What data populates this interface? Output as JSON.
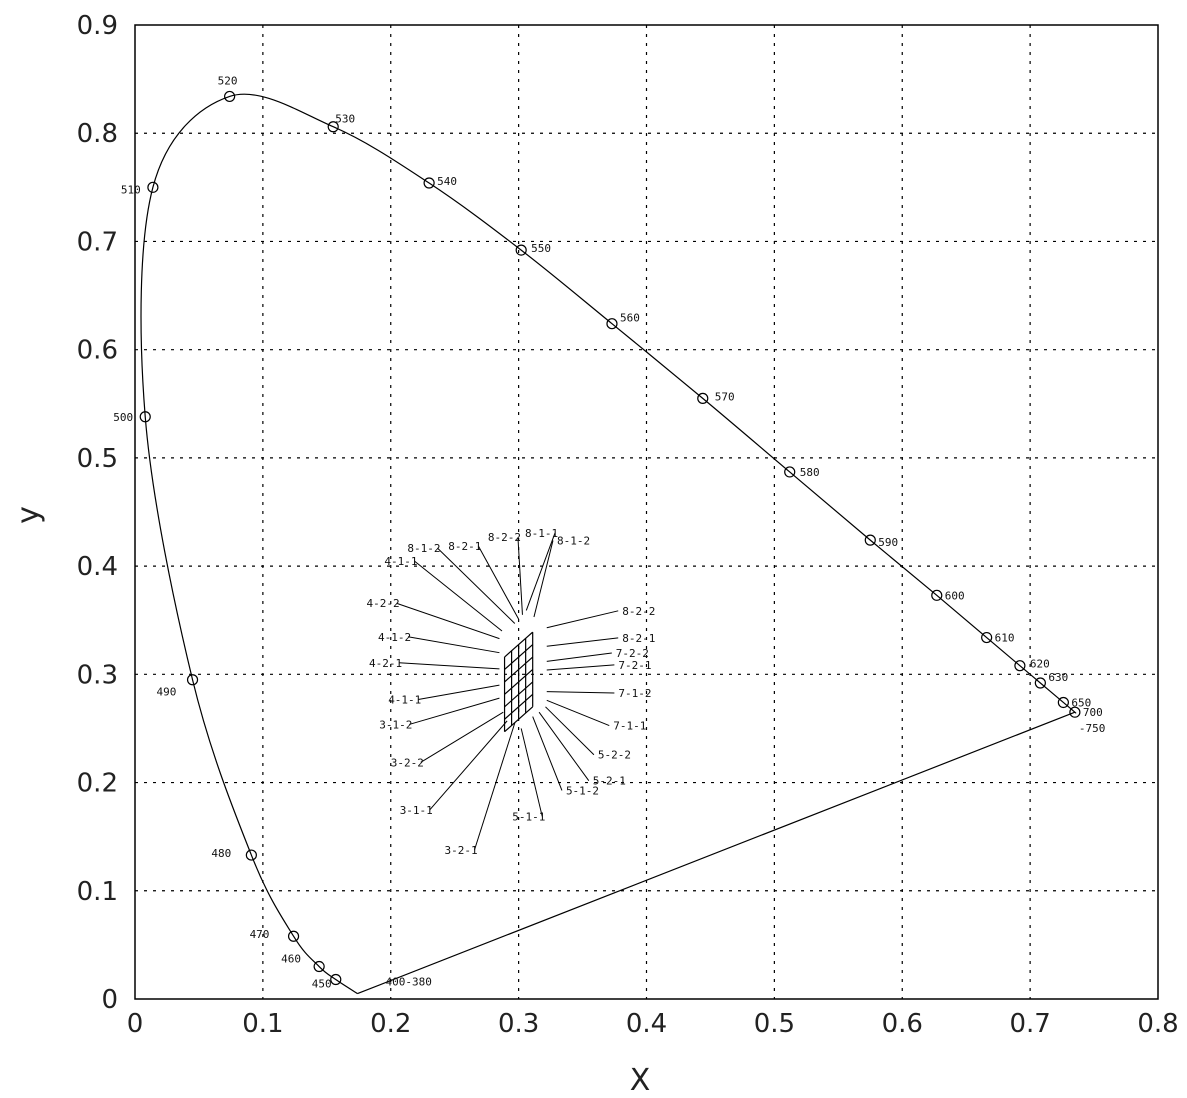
{
  "chart_data": {
    "type": "scatter",
    "title": "",
    "xlabel": "X",
    "ylabel": "y",
    "xlim": [
      0,
      0.8
    ],
    "ylim": [
      0,
      0.9
    ],
    "xticks": [
      "0",
      "0.1",
      "0.2",
      "0.3",
      "0.4",
      "0.5",
      "0.6",
      "0.7",
      "0.8"
    ],
    "yticks": [
      "0",
      "0.1",
      "0.2",
      "0.3",
      "0.4",
      "0.5",
      "0.6",
      "0.7",
      "0.8",
      "0.9"
    ],
    "grid": true,
    "spectral_locus": [
      {
        "label": "400-380",
        "x": 0.174,
        "y": 0.005
      },
      {
        "label": "450",
        "x": 0.157,
        "y": 0.018
      },
      {
        "label": "460",
        "x": 0.144,
        "y": 0.03
      },
      {
        "label": "470",
        "x": 0.124,
        "y": 0.058
      },
      {
        "label": "480",
        "x": 0.091,
        "y": 0.133
      },
      {
        "label": "490",
        "x": 0.045,
        "y": 0.295
      },
      {
        "label": "500",
        "x": 0.008,
        "y": 0.538
      },
      {
        "label": "510",
        "x": 0.014,
        "y": 0.75
      },
      {
        "label": "520",
        "x": 0.074,
        "y": 0.834
      },
      {
        "label": "530",
        "x": 0.155,
        "y": 0.806
      },
      {
        "label": "540",
        "x": 0.23,
        "y": 0.754
      },
      {
        "label": "550",
        "x": 0.302,
        "y": 0.692
      },
      {
        "label": "560",
        "x": 0.373,
        "y": 0.624
      },
      {
        "label": "570",
        "x": 0.444,
        "y": 0.555
      },
      {
        "label": "580",
        "x": 0.512,
        "y": 0.487
      },
      {
        "label": "590",
        "x": 0.575,
        "y": 0.424
      },
      {
        "label": "600",
        "x": 0.627,
        "y": 0.373
      },
      {
        "label": "610",
        "x": 0.666,
        "y": 0.334
      },
      {
        "label": "620",
        "x": 0.692,
        "y": 0.308
      },
      {
        "label": "630",
        "x": 0.708,
        "y": 0.292
      },
      {
        "label": "650",
        "x": 0.726,
        "y": 0.274
      },
      {
        "label": "700",
        "x": 0.735,
        "y": 0.265
      },
      {
        "label": "750",
        "x": 0.735,
        "y": 0.265
      }
    ],
    "grid_patch": {
      "bottom_left": [
        0.289,
        0.247
      ],
      "bottom_right": [
        0.311,
        0.27
      ],
      "top_left": [
        0.289,
        0.316
      ],
      "top_right": [
        0.311,
        0.339
      ]
    },
    "patch_labels": [
      {
        "text": "4-1-1",
        "x": 0.195,
        "y": 0.401,
        "ax": 0.287,
        "ay": 0.34
      },
      {
        "text": "8-1-2",
        "x": 0.213,
        "y": 0.413,
        "ax": 0.297,
        "ay": 0.347
      },
      {
        "text": "8-2-1",
        "x": 0.245,
        "y": 0.415,
        "ax": 0.3,
        "ay": 0.351
      },
      {
        "text": "8-2-2",
        "x": 0.276,
        "y": 0.423,
        "ax": 0.303,
        "ay": 0.355
      },
      {
        "text": "8-1-1",
        "x": 0.305,
        "y": 0.427,
        "ax": 0.306,
        "ay": 0.359
      },
      {
        "text": "8-1-2",
        "x": 0.33,
        "y": 0.42,
        "ax": 0.312,
        "ay": 0.353
      },
      {
        "text": "4-2-2",
        "x": 0.181,
        "y": 0.362,
        "ax": 0.285,
        "ay": 0.333
      },
      {
        "text": "4-1-2",
        "x": 0.19,
        "y": 0.331,
        "ax": 0.285,
        "ay": 0.32
      },
      {
        "text": "4-2-1",
        "x": 0.183,
        "y": 0.307,
        "ax": 0.285,
        "ay": 0.305
      },
      {
        "text": "4-1-1",
        "x": 0.198,
        "y": 0.273,
        "ax": 0.285,
        "ay": 0.29
      },
      {
        "text": "3-1-2",
        "x": 0.191,
        "y": 0.25,
        "ax": 0.285,
        "ay": 0.278
      },
      {
        "text": "3-2-2",
        "x": 0.2,
        "y": 0.215,
        "ax": 0.288,
        "ay": 0.265
      },
      {
        "text": "3-1-1",
        "x": 0.207,
        "y": 0.171,
        "ax": 0.291,
        "ay": 0.257
      },
      {
        "text": "3-2-1",
        "x": 0.242,
        "y": 0.134,
        "ax": 0.297,
        "ay": 0.255
      },
      {
        "text": "5-1-1",
        "x": 0.295,
        "y": 0.165,
        "ax": 0.302,
        "ay": 0.25
      },
      {
        "text": "5-1-2",
        "x": 0.337,
        "y": 0.189,
        "ax": 0.311,
        "ay": 0.261
      },
      {
        "text": "5-2-1",
        "x": 0.358,
        "y": 0.198,
        "ax": 0.316,
        "ay": 0.265
      },
      {
        "text": "5-2-2",
        "x": 0.362,
        "y": 0.222,
        "ax": 0.321,
        "ay": 0.27
      },
      {
        "text": "7-1-1",
        "x": 0.374,
        "y": 0.249,
        "ax": 0.322,
        "ay": 0.276
      },
      {
        "text": "7-1-2",
        "x": 0.378,
        "y": 0.279,
        "ax": 0.322,
        "ay": 0.284
      },
      {
        "text": "7-2-1",
        "x": 0.378,
        "y": 0.305,
        "ax": 0.322,
        "ay": 0.304
      },
      {
        "text": "7-2-2",
        "x": 0.376,
        "y": 0.316,
        "ax": 0.322,
        "ay": 0.312
      },
      {
        "text": "8-2-1",
        "x": 0.381,
        "y": 0.33,
        "ax": 0.322,
        "ay": 0.326
      },
      {
        "text": "8-2-2",
        "x": 0.381,
        "y": 0.355,
        "ax": 0.322,
        "ay": 0.343
      }
    ]
  }
}
